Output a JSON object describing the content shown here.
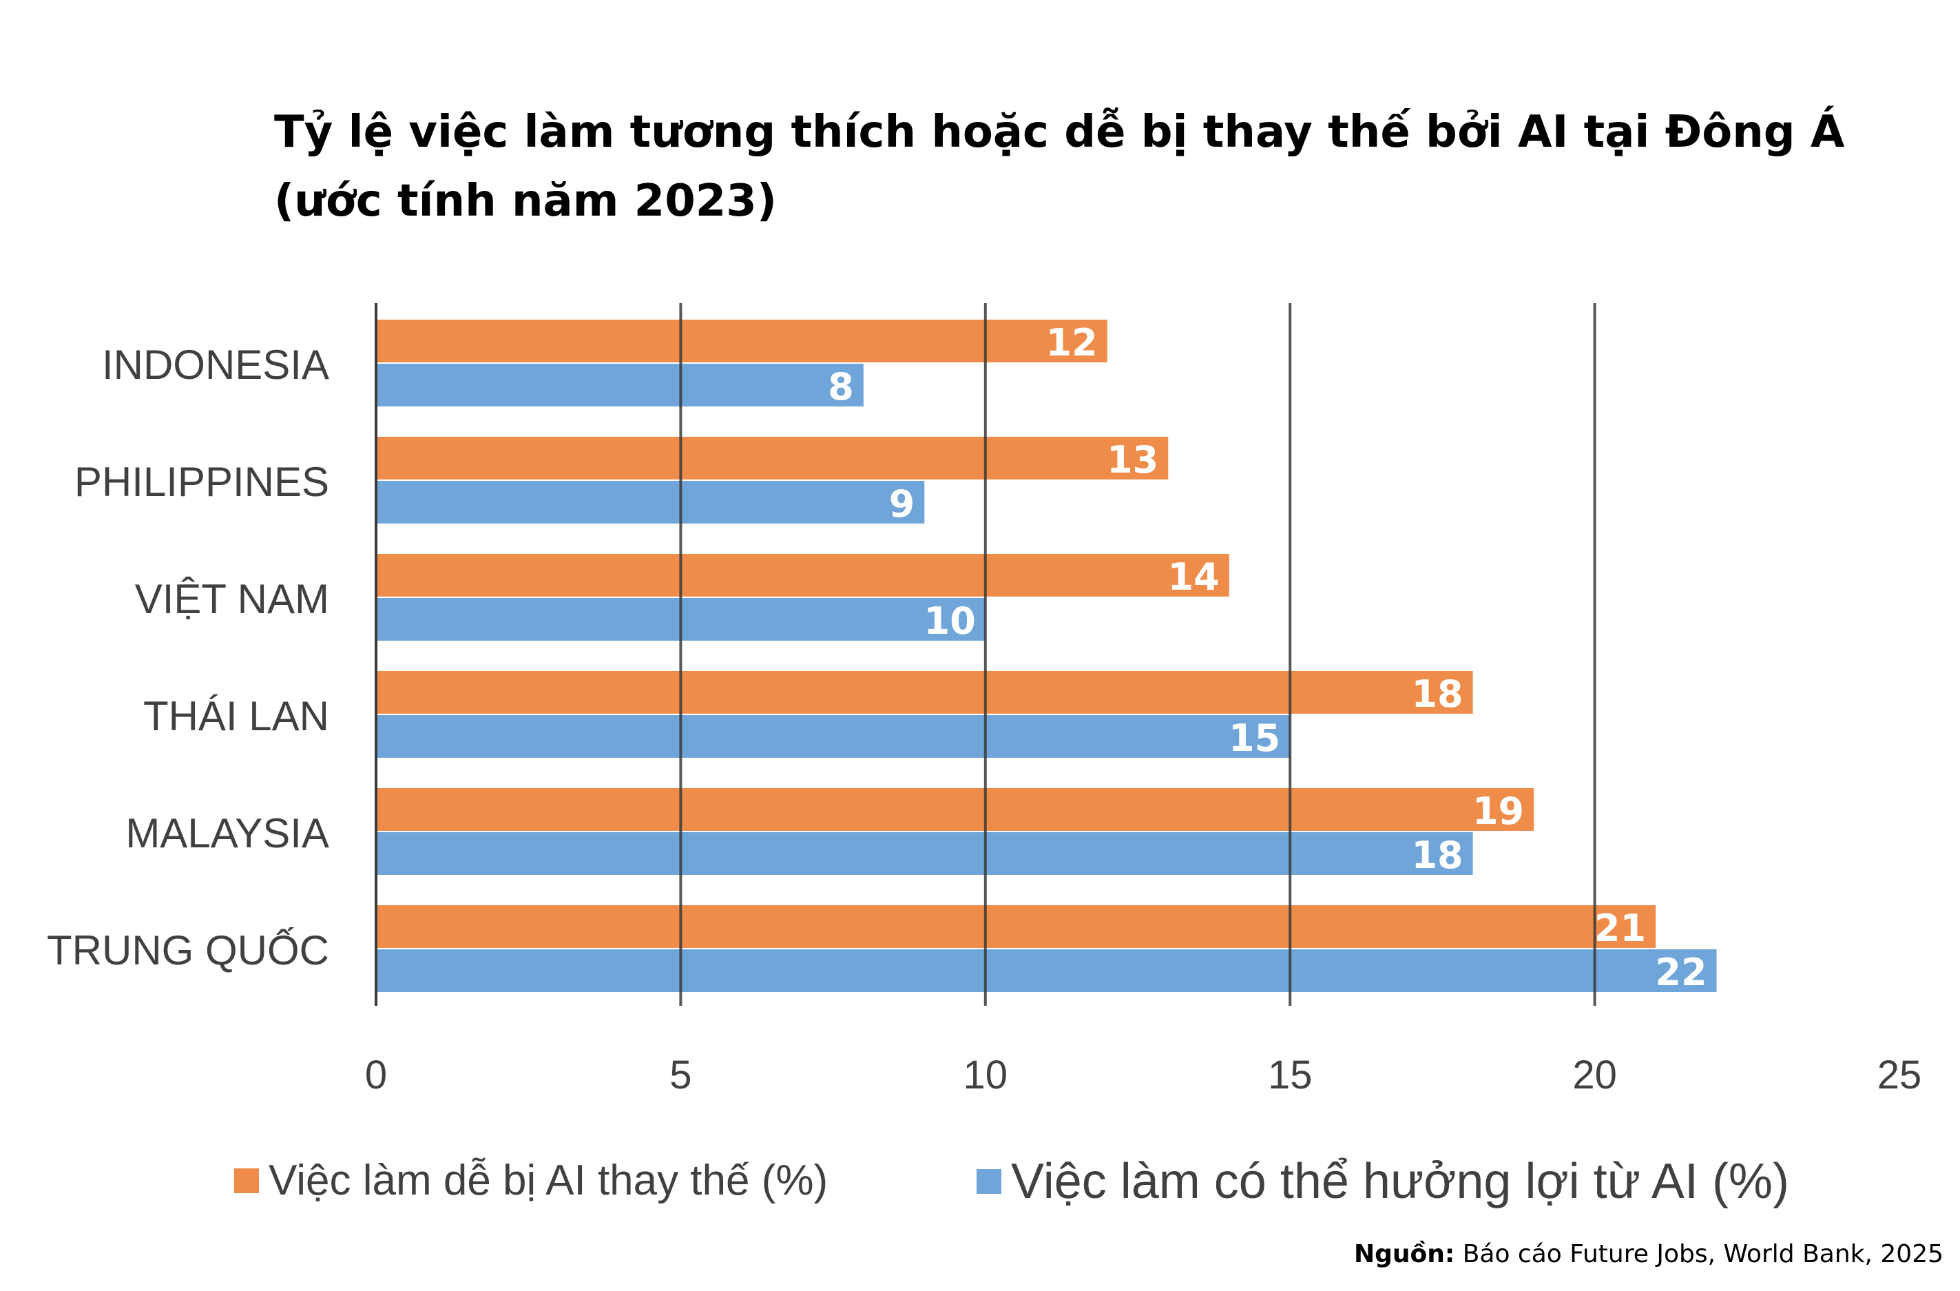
{
  "chart_data": {
    "type": "bar",
    "orientation": "horizontal",
    "title": [
      "Tỷ lệ việc làm tương thích hoặc dễ bị thay thế bởi AI tại Đông Á",
      "(ước tính năm 2023)"
    ],
    "categories": [
      "INDONESIA",
      "PHILIPPINES",
      "VIỆT NAM",
      "THÁI LAN",
      "MALAYSIA",
      "TRUNG QUỐC"
    ],
    "series": [
      {
        "name": "Việc làm dễ bị AI thay thế (%)",
        "color": "#F08C4A",
        "values": [
          12,
          13,
          14,
          18,
          19,
          21
        ]
      },
      {
        "name": "Việc làm có thể hưởng lợi từ AI (%)",
        "color": "#6FA5D9",
        "values": [
          8,
          9,
          10,
          15,
          18,
          22
        ]
      }
    ],
    "xlim": [
      0,
      25
    ],
    "xticks": [
      "0",
      "5",
      "10",
      "15",
      "20",
      "25"
    ],
    "grid": true,
    "legend_position": "bottom"
  },
  "source": {
    "label": "Nguồn:",
    "text": "Báo cáo Future Jobs, World Bank, 2025"
  }
}
